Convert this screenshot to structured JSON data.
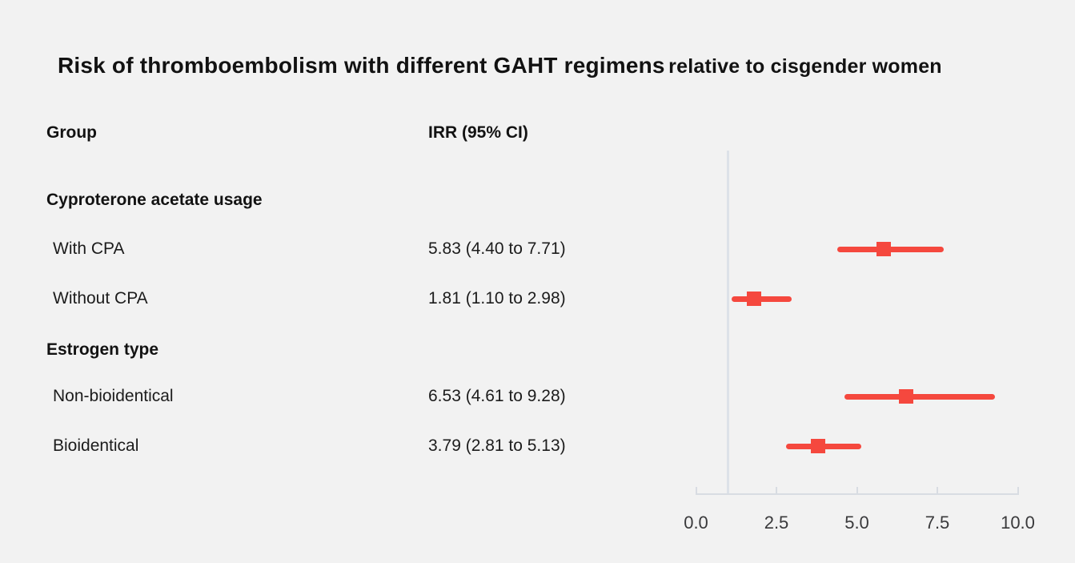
{
  "title": {
    "main": "Risk of thromboembolism with different GAHT regimens",
    "sub": "relative to cisgender women"
  },
  "table": {
    "group_header": "Group",
    "irr_header": "IRR (95% CI)"
  },
  "chart_data": {
    "type": "forest",
    "x_range": [
      0,
      10
    ],
    "reference_line": 1,
    "grid": false,
    "axis": {
      "ticks": [
        {
          "value": 0,
          "label": "0.0"
        },
        {
          "value": 2.5,
          "label": "2.5"
        },
        {
          "value": 5,
          "label": "5.0"
        },
        {
          "value": 7.5,
          "label": "7.5"
        },
        {
          "value": 10,
          "label": "10.0"
        }
      ]
    },
    "groups": [
      {
        "label": "Cyproterone acetate usage",
        "items": [
          {
            "label": "With CPA",
            "irr": 5.83,
            "ci_low": 4.4,
            "ci_high": 7.71,
            "display": "5.83 (4.40 to 7.71)"
          },
          {
            "label": "Without CPA",
            "irr": 1.81,
            "ci_low": 1.1,
            "ci_high": 2.98,
            "display": "1.81 (1.10 to 2.98)"
          }
        ]
      },
      {
        "label": "Estrogen type",
        "items": [
          {
            "label": "Non-bioidentical",
            "irr": 6.53,
            "ci_low": 4.61,
            "ci_high": 9.28,
            "display": "6.53 (4.61 to 9.28)"
          },
          {
            "label": "Bioidentical",
            "irr": 3.79,
            "ci_low": 2.81,
            "ci_high": 5.13,
            "display": "3.79 (2.81 to 5.13)"
          }
        ]
      }
    ],
    "colors": {
      "marker": "#f5483e",
      "axis": "#d8dce2",
      "reference_line": "#dde2e8",
      "text": "#1c1c1c",
      "background": "#f2f2f2"
    }
  }
}
